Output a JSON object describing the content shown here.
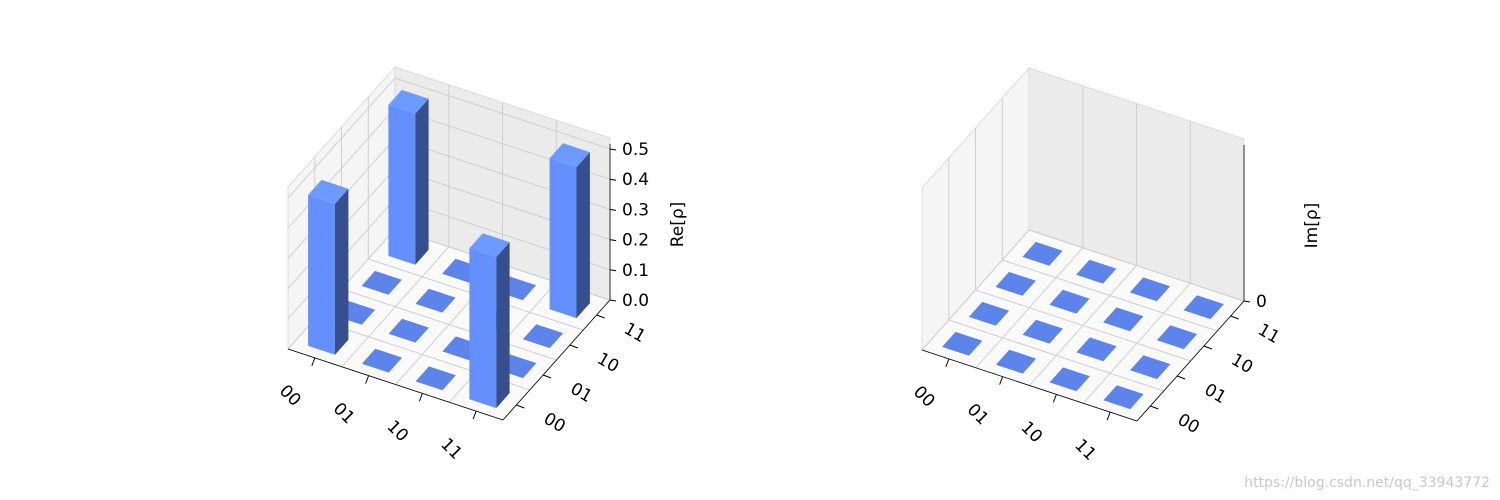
{
  "chart_data": [
    {
      "type": "bar3d",
      "zlabel": "Re[ρ]",
      "xcategories": [
        "00",
        "01",
        "10",
        "11"
      ],
      "ycategories": [
        "00",
        "01",
        "10",
        "11"
      ],
      "values": [
        [
          0.5,
          0,
          0,
          0.5
        ],
        [
          0,
          0,
          0,
          0
        ],
        [
          0,
          0,
          0,
          0
        ],
        [
          0.5,
          0,
          0,
          0.5
        ]
      ],
      "color": "#648fff",
      "zlim": [
        0,
        0.5
      ],
      "zticks": [
        {
          "value": 0,
          "label": "0.0"
        },
        0.1,
        0.2,
        0.3,
        0.4,
        0.5
      ],
      "grid": true
    },
    {
      "type": "bar3d",
      "zlabel": "Im[ρ]",
      "xcategories": [
        "00",
        "01",
        "10",
        "11"
      ],
      "ycategories": [
        "00",
        "01",
        "10",
        "11"
      ],
      "values": [
        [
          0,
          0,
          0,
          0
        ],
        [
          0,
          0,
          0,
          0
        ],
        [
          0,
          0,
          0,
          0
        ],
        [
          0,
          0,
          0,
          0
        ]
      ],
      "color": "#648fff",
      "zlim": [
        0,
        0.5
      ],
      "zticks": [
        0
      ],
      "grid": true
    }
  ],
  "watermark": "https://blog.csdn.net/qq_33943772"
}
